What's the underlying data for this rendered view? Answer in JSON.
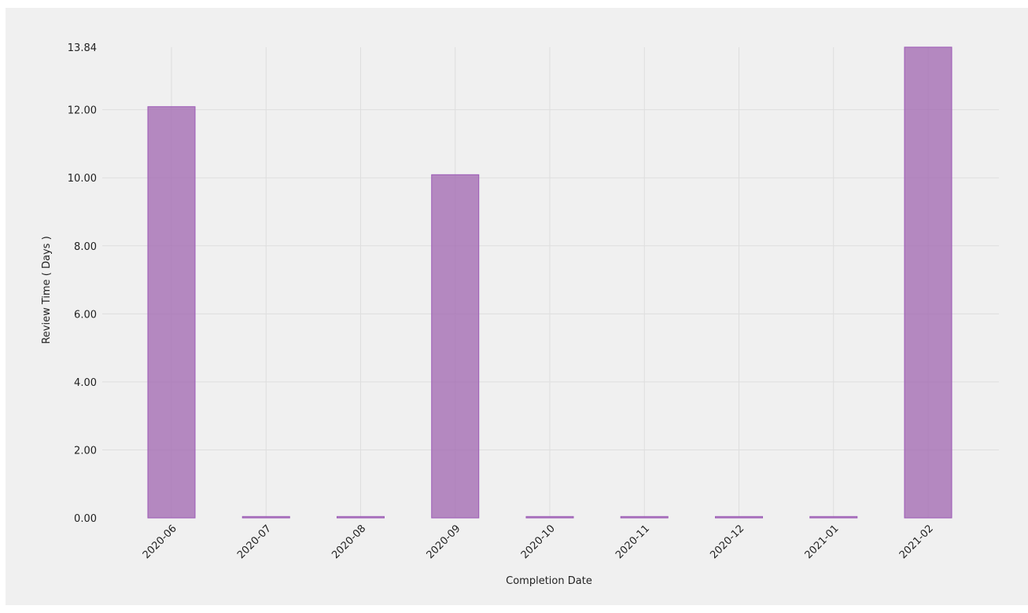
{
  "chart_data": {
    "type": "bar",
    "categories": [
      "2020-06",
      "2020-07",
      "2020-08",
      "2020-09",
      "2020-10",
      "2020-11",
      "2020-12",
      "2021-01",
      "2021-02"
    ],
    "series": [
      {
        "values": [
          12.09,
          0.04,
          0.04,
          10.09,
          0.04,
          0.04,
          0.04,
          0.04,
          13.84
        ]
      }
    ],
    "xlabel": "Completion Date",
    "ylabel": "Review Time ( Days )",
    "ylim": [
      0,
      13.84
    ],
    "yticks": [
      "0.00",
      "2.00",
      "4.00",
      "6.00",
      "8.00",
      "10.00",
      "12.00",
      "13.84"
    ],
    "grid": true,
    "bar_color": "#a066b0",
    "background_color": "#f0f0f0"
  }
}
